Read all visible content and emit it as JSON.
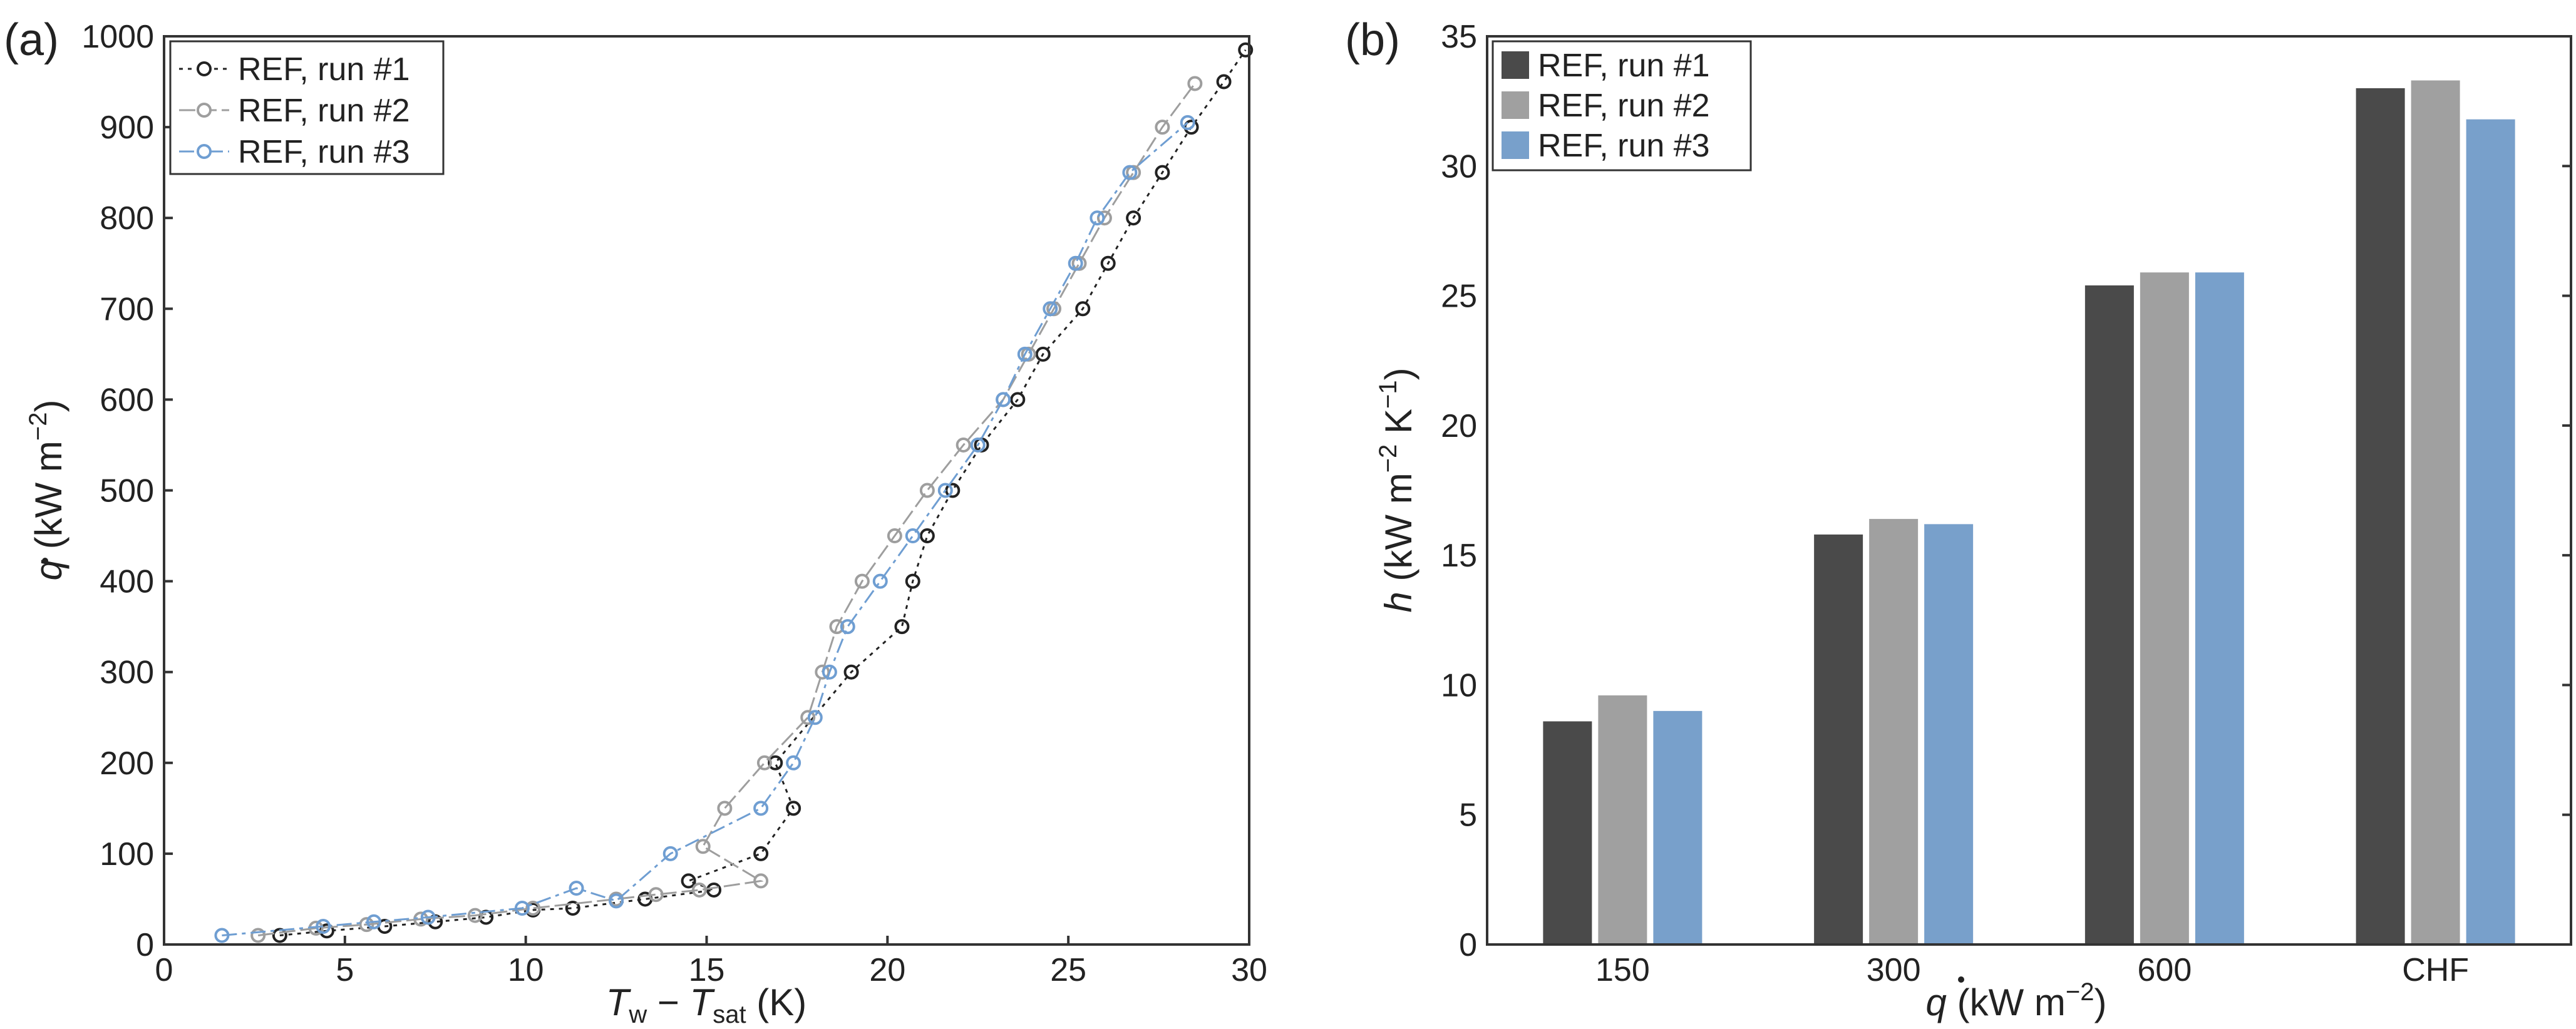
{
  "colors": {
    "run1": "#222222",
    "run2": "#9e9e9e",
    "run3": "#6f9ed2",
    "bar_run1": "#4a4a4a",
    "bar_run2": "#a0a0a0",
    "bar_run3": "#78a0cb"
  },
  "chart_data": [
    {
      "panel_label": "(a)",
      "type": "line",
      "xlabel": {
        "main": "T",
        "sub1": "w",
        "mid": " − ",
        "main2": "T",
        "sub2": "sat",
        "unit": " (K)"
      },
      "ylabel": {
        "symbol": "q",
        "unit_start": " (kW m",
        "exp": "−2",
        "unit_end": ")"
      },
      "xlim": [
        0,
        30
      ],
      "ylim": [
        0,
        1000
      ],
      "xticks": [
        "0",
        "5",
        "10",
        "15",
        "20",
        "25",
        "30"
      ],
      "yticks": [
        "0",
        "100",
        "200",
        "300",
        "400",
        "500",
        "600",
        "700",
        "800",
        "900",
        "1000"
      ],
      "legend": {
        "position": "top-left"
      },
      "series": [
        {
          "name": "REF, run #1",
          "x": [
            3.2,
            4.5,
            6.1,
            7.5,
            8.9,
            10.2,
            11.3,
            13.3,
            15.2,
            14.5,
            16.5,
            17.4,
            16.9,
            19.0,
            20.4,
            20.7,
            21.1,
            21.8,
            22.6,
            23.6,
            24.3,
            25.4,
            26.1,
            26.8,
            27.6,
            28.4,
            29.3,
            29.9
          ],
          "y": [
            10,
            15,
            20,
            25,
            30,
            38,
            40,
            50,
            60,
            70,
            100,
            150,
            200,
            300,
            350,
            400,
            450,
            500,
            550,
            600,
            650,
            700,
            750,
            800,
            850,
            900,
            950,
            985
          ]
        },
        {
          "name": "REF, run #2",
          "x": [
            2.6,
            4.2,
            5.6,
            7.1,
            8.6,
            10.2,
            12.5,
            13.6,
            14.8,
            16.5,
            14.9,
            15.5,
            16.6,
            17.8,
            18.2,
            18.6,
            19.3,
            20.2,
            21.1,
            22.1,
            23.2,
            23.9,
            24.6,
            25.3,
            26.0,
            26.8,
            27.6,
            28.5
          ],
          "y": [
            10,
            18,
            22,
            28,
            32,
            40,
            50,
            55,
            60,
            70,
            108,
            150,
            200,
            250,
            300,
            350,
            400,
            450,
            500,
            550,
            600,
            650,
            700,
            750,
            800,
            850,
            900,
            948
          ]
        },
        {
          "name": "REF, run #3",
          "x": [
            1.6,
            4.4,
            5.8,
            7.3,
            9.9,
            11.4,
            12.5,
            14.0,
            16.5,
            17.4,
            18.0,
            18.4,
            18.9,
            19.8,
            20.7,
            21.6,
            22.5,
            23.2,
            23.8,
            24.5,
            25.2,
            25.8,
            26.7,
            28.3
          ],
          "y": [
            10,
            20,
            25,
            30,
            40,
            62,
            48,
            100,
            150,
            200,
            250,
            300,
            350,
            400,
            450,
            500,
            550,
            600,
            650,
            700,
            750,
            800,
            850,
            905
          ]
        }
      ]
    },
    {
      "panel_label": "(b)",
      "type": "bar",
      "categories": [
        "150",
        "300",
        "600",
        "CHF"
      ],
      "xlabel": {
        "symbol": "q",
        "unit_start": " (kW m",
        "exp": "−2",
        "unit_end": ")"
      },
      "ylabel": {
        "symbol": "h",
        "unit_start": " (kW m",
        "exp1": "−2",
        "mid": " K",
        "exp2": "−1",
        "unit_end": ")"
      },
      "ylim": [
        0,
        35
      ],
      "yticks": [
        "0",
        "5",
        "10",
        "15",
        "20",
        "25",
        "30",
        "35"
      ],
      "legend": {
        "position": "top-left"
      },
      "series": [
        {
          "name": "REF, run #1",
          "values": [
            8.6,
            15.8,
            25.4,
            33.0
          ]
        },
        {
          "name": "REF, run #2",
          "values": [
            9.6,
            16.4,
            25.9,
            33.3
          ]
        },
        {
          "name": "REF, run #3",
          "values": [
            9.0,
            16.2,
            25.9,
            31.8
          ]
        }
      ]
    }
  ]
}
